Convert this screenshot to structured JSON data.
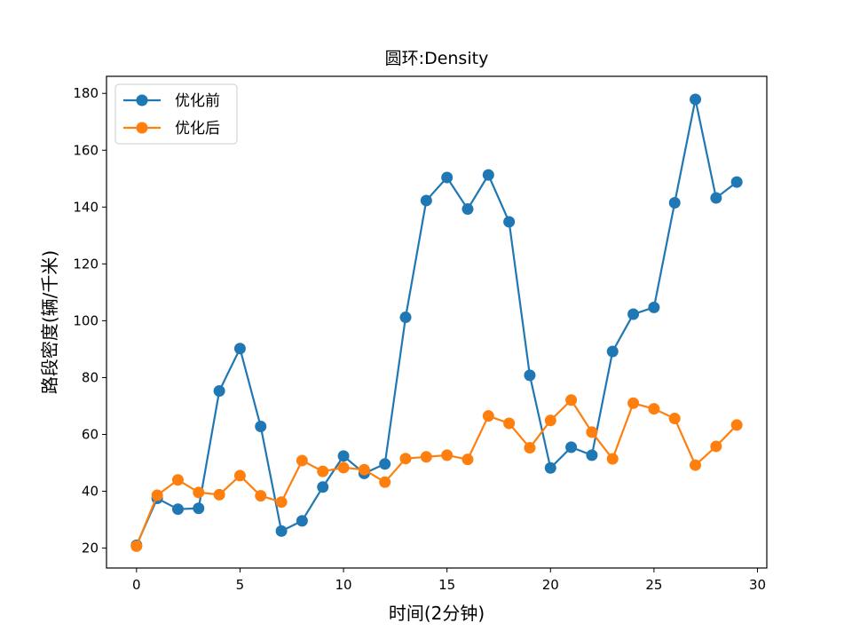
{
  "chart_data": {
    "type": "line",
    "title": "圆环:Density",
    "xlabel": "时间(2分钟)",
    "ylabel": "路段密度(辆/千米)",
    "xlim": [
      -1.45,
      30.45
    ],
    "ylim": [
      13,
      186
    ],
    "xticks": [
      0,
      5,
      10,
      15,
      20,
      25,
      30
    ],
    "yticks": [
      20,
      40,
      60,
      80,
      100,
      120,
      140,
      160,
      180
    ],
    "grid": false,
    "legend_position": "top-left",
    "x": [
      0,
      1,
      2,
      3,
      4,
      5,
      6,
      7,
      8,
      9,
      10,
      11,
      12,
      13,
      14,
      15,
      16,
      17,
      18,
      19,
      20,
      21,
      22,
      23,
      24,
      25,
      26,
      27,
      28,
      29
    ],
    "series": [
      {
        "name": "优化前",
        "color": "#1f77b4",
        "marker": "circle",
        "values": [
          21,
          37.5,
          33.7,
          34,
          75.3,
          90.2,
          62.8,
          26,
          29.6,
          41.5,
          52.4,
          46.3,
          49.6,
          101.2,
          142.3,
          150.4,
          139.3,
          151.3,
          134.8,
          80.8,
          48.2,
          55.5,
          52.7,
          89.2,
          102.3,
          104.7,
          141.5,
          177.9,
          143.2,
          148.8
        ]
      },
      {
        "name": "优化后",
        "color": "#ff7f0e",
        "marker": "circle",
        "values": [
          20.7,
          38.6,
          44,
          39.6,
          38.8,
          45.5,
          38.4,
          36.2,
          50.8,
          47,
          48.3,
          47.6,
          43.2,
          51.5,
          52.1,
          52.7,
          51.2,
          66.5,
          63.9,
          55.3,
          64.9,
          72.1,
          60.8,
          51.4,
          71,
          69,
          65.6,
          49.2,
          55.8,
          63.3
        ]
      }
    ]
  }
}
